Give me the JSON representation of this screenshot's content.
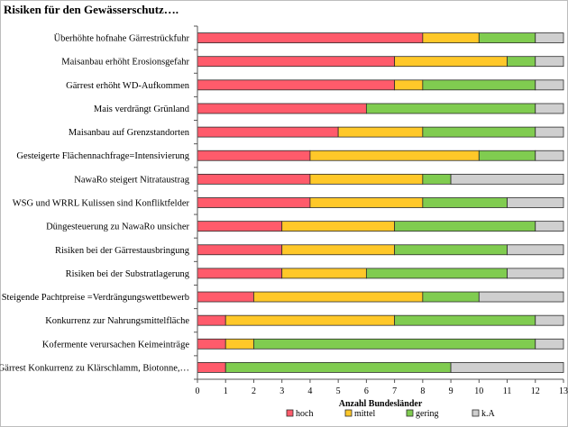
{
  "chart_data": {
    "type": "bar",
    "orientation": "horizontal",
    "stacked": true,
    "title": "Risiken für den Gewässerschutz….",
    "xlabel": "Anzahl Bundesländer",
    "ylabel": "",
    "xlim": [
      0,
      13
    ],
    "xticks": [
      "0",
      "1",
      "2",
      "3",
      "4",
      "5",
      "6",
      "7",
      "8",
      "9",
      "10",
      "11",
      "12",
      "13"
    ],
    "grid": false,
    "legend_position": "bottom",
    "categories": [
      "Überhöhte hofnahe Gärrestrückfuhr",
      "Maisanbau erhöht Erosionsgefahr",
      "Gärrest erhöht WD-Aufkommen",
      "Mais verdrängt Grünland",
      "Maisanbau auf Grenzstandorten",
      "Gesteigerte Flächennachfrage=Intensivierung",
      "NawaRo steigert Nitrataustrag",
      "WSG und WRRL Kulissen sind Konfliktfelder",
      "Düngesteuerung zu NawaRo unsicher",
      "Risiken bei der Gärrestausbringung",
      "Risiken bei der Substratlagerung",
      "Steigende Pachtpreise =Verdrängungswettbewerb",
      "Konkurrenz zur Nahrungsmittelfläche",
      "Kofermente verursachen Keimeinträge",
      "Gärrest Konkurrenz zu Klärschlamm, Biotonne,…"
    ],
    "series": [
      {
        "name": "hoch",
        "color": "#ff5b6b",
        "values": [
          8,
          7,
          7,
          6,
          5,
          4,
          4,
          4,
          3,
          3,
          3,
          2,
          1,
          1,
          1
        ]
      },
      {
        "name": "mittel",
        "color": "#ffc829",
        "values": [
          2,
          4,
          1,
          0,
          3,
          6,
          4,
          4,
          4,
          4,
          3,
          6,
          6,
          1,
          0
        ]
      },
      {
        "name": "gering",
        "color": "#80cc50",
        "values": [
          2,
          1,
          4,
          6,
          4,
          2,
          1,
          3,
          5,
          4,
          5,
          2,
          5,
          10,
          8
        ]
      },
      {
        "name": "k.A",
        "color": "#cfcfcf",
        "values": [
          1,
          1,
          1,
          1,
          1,
          1,
          4,
          2,
          1,
          2,
          2,
          3,
          1,
          1,
          4
        ]
      }
    ]
  }
}
